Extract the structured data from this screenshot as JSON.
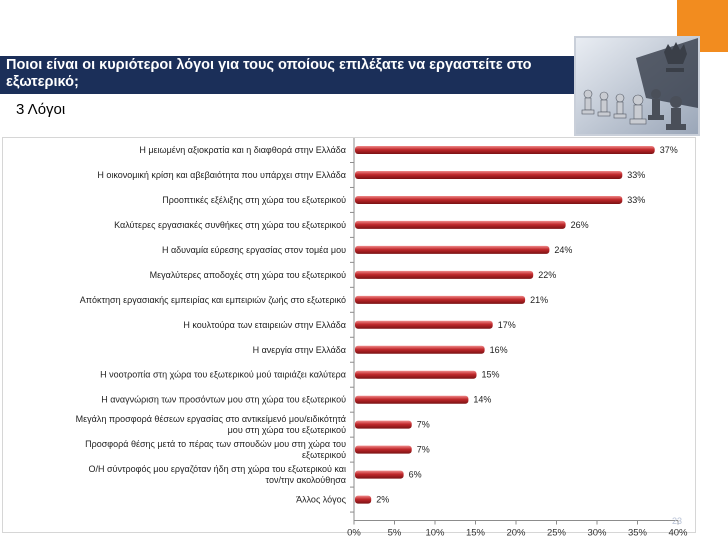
{
  "header": {
    "title": "Ποιοι είναι οι κυριότεροι λόγοι για τους οποίους επιλέξατε να εργαστείτε στο εξωτερικό;",
    "subtitle": "3 Λόγοι",
    "page_number": "23"
  },
  "colors": {
    "bar": "#c0282b",
    "title_bg": "#1b2f59",
    "accent": "#f28c1f"
  },
  "chart_data": {
    "type": "bar",
    "orientation": "horizontal",
    "categories": [
      "Η μειωμένη αξιοκρατία και η διαφθορά στην Ελλάδα",
      "Η οικονομική κρίση και αβεβαιότητα που υπάρχει στην Ελλάδα",
      "Προοπτικές εξέλιξης στη χώρα του εξωτερικού",
      "Καλύτερες εργασιακές συνθήκες στη χώρα του εξωτερικού",
      "Η αδυναμία εύρεσης εργασίας στον τομέα μου",
      "Μεγαλύτερες αποδοχές στη χώρα του εξωτερικού",
      "Απόκτηση εργασιακής εμπειρίας και εμπειριών ζωής στο εξωτερικό",
      "Η κουλτούρα των εταιρειών στην Ελλάδα",
      "Η ανεργία στην Ελλάδα",
      "Η νοοτροπία στη χώρα του εξωτερικού μού ταιριάζει καλύτερα",
      "Η αναγνώριση των προσόντων μου στη χώρα του εξωτερικού",
      "Μεγάλη προσφορά θέσεων εργασίας στο αντικείμενό μου/ειδικότητά μου στη χώρα του εξωτερικού",
      "Προσφορά θέσης μετά το πέρας των σπουδών μου στη χώρα του εξωτερικού",
      "Ο/Η σύντροφός μου εργαζόταν ήδη στη χώρα του εξωτερικού και τον/την ακολούθησα",
      "Άλλος λόγος"
    ],
    "values": [
      37,
      33,
      33,
      26,
      24,
      22,
      21,
      17,
      16,
      15,
      14,
      7,
      7,
      6,
      2
    ],
    "value_labels": [
      "37%",
      "33%",
      "33%",
      "26%",
      "24%",
      "22%",
      "21%",
      "17%",
      "16%",
      "15%",
      "14%",
      "7%",
      "7%",
      "6%",
      "2%"
    ],
    "xlim": [
      0,
      40
    ],
    "xticks": [
      "0%",
      "5%",
      "10%",
      "15%",
      "20%",
      "25%",
      "30%",
      "35%",
      "40%"
    ],
    "grid": false,
    "legend": "none"
  }
}
